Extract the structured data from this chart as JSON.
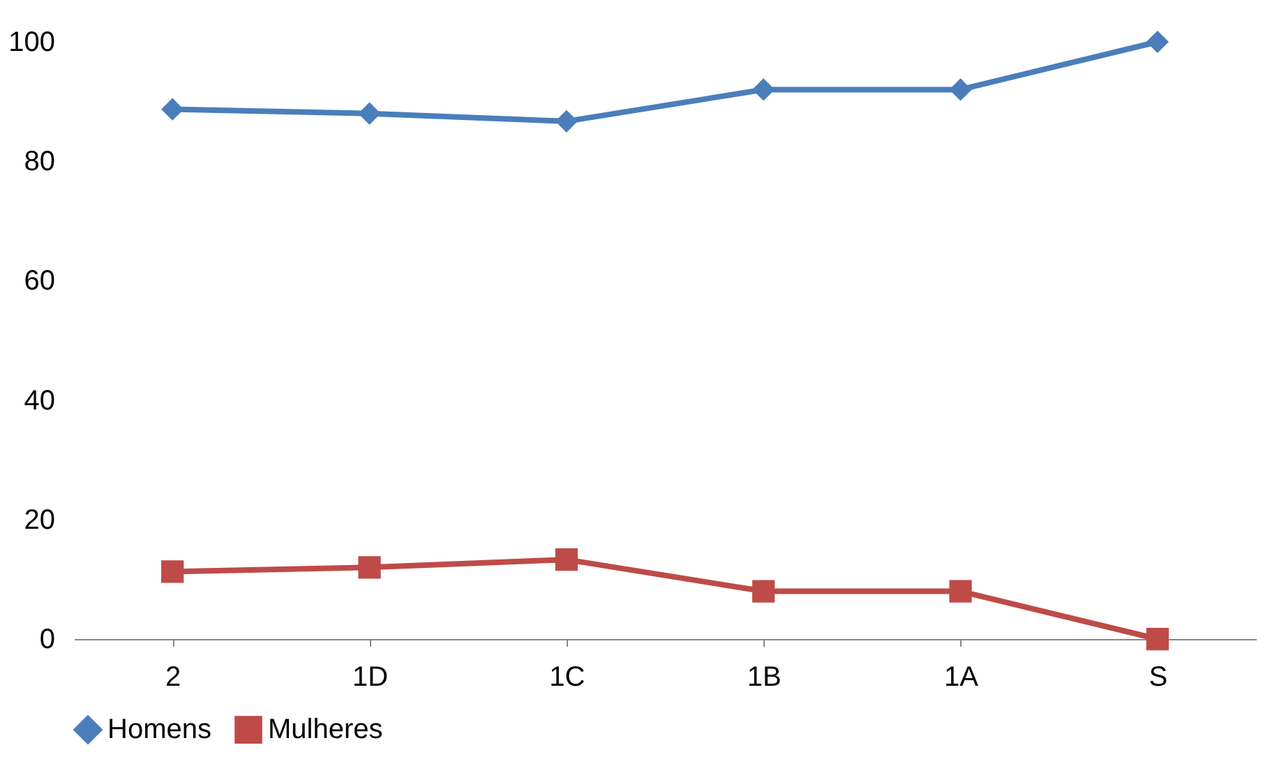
{
  "chart_data": {
    "type": "line",
    "categories": [
      "2",
      "1D",
      "1C",
      "1B",
      "1A",
      "S"
    ],
    "series": [
      {
        "name": "Homens",
        "color": "#4a7ebb",
        "marker": "diamond",
        "values": [
          88.7,
          88.0,
          86.7,
          92.0,
          92.0,
          100
        ]
      },
      {
        "name": "Mulheres",
        "color": "#be4b48",
        "marker": "square",
        "values": [
          11.3,
          12.0,
          13.3,
          8.0,
          8.0,
          0
        ]
      }
    ],
    "ylim": [
      0,
      100
    ],
    "yticks": [
      0,
      20,
      40,
      60,
      80,
      100
    ],
    "grid": false,
    "legend": "bottom"
  }
}
